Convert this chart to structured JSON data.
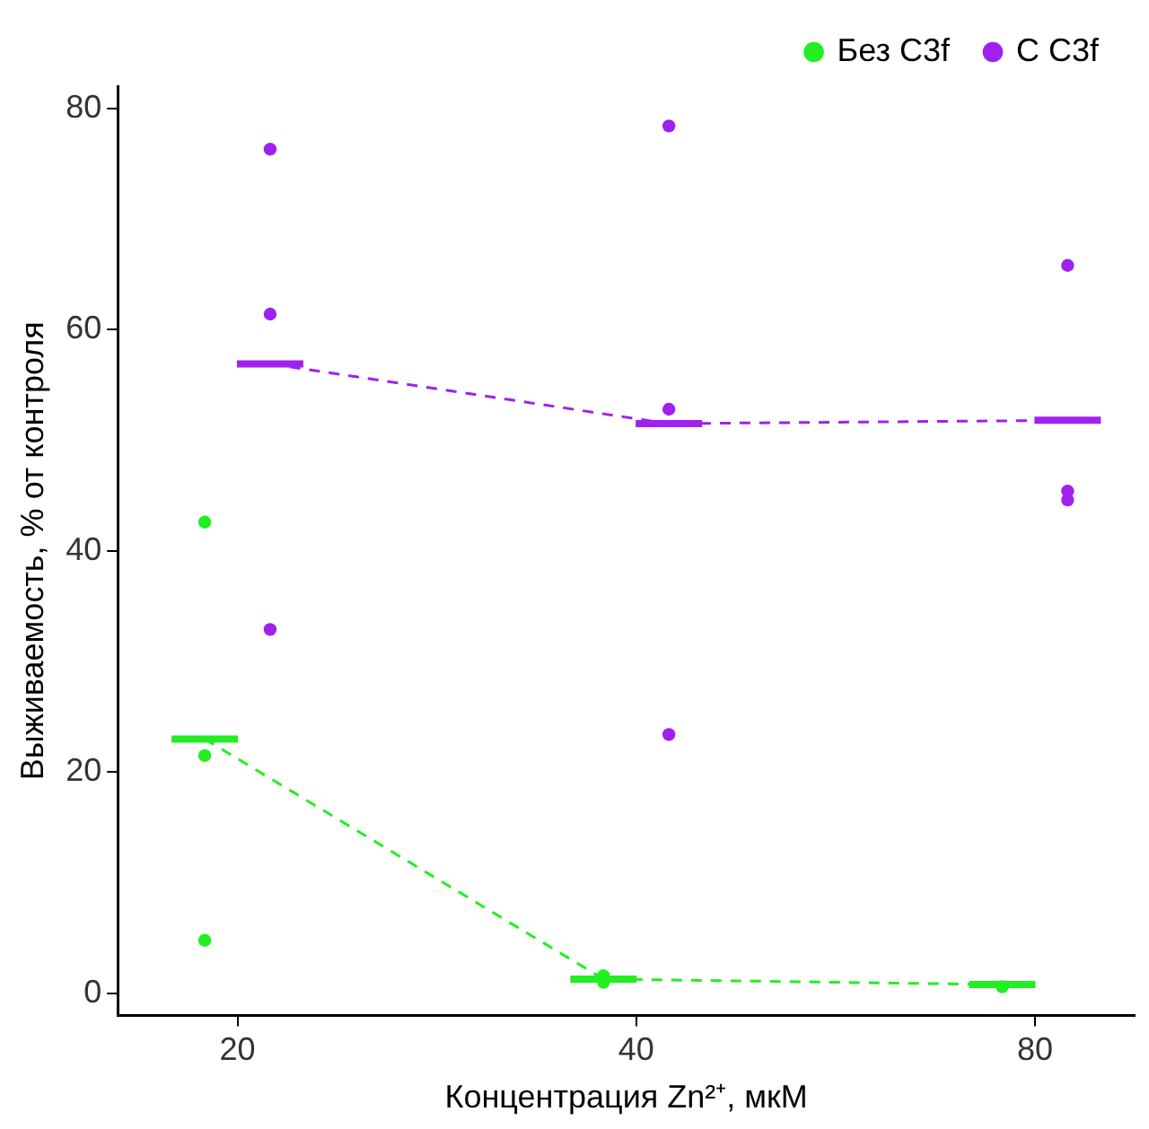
{
  "chart_data": {
    "type": "scatter",
    "xlabel": "Концентрация Zn²⁺, мкМ",
    "ylabel": "Выживаемость, % от контроля",
    "categories": [
      "20",
      "40",
      "80"
    ],
    "ylim": [
      -2,
      82
    ],
    "yticks": [
      0,
      20,
      40,
      60,
      80
    ],
    "grid": false,
    "legend": "top right",
    "marker": "circle",
    "series": [
      {
        "name": "Без C3f",
        "color": "#22ee22",
        "x": [
          "20",
          "20",
          "20",
          "40",
          "40",
          "80"
        ],
        "values": [
          42.6,
          21.5,
          4.8,
          1.6,
          1.0,
          0.6
        ]
      },
      {
        "name": "С C3f",
        "color": "#a020f0",
        "x": [
          "20",
          "20",
          "20",
          "40",
          "40",
          "40",
          "80",
          "80",
          "80"
        ],
        "values": [
          76.3,
          61.4,
          32.9,
          78.4,
          52.8,
          23.4,
          65.8,
          45.4,
          44.6
        ]
      },
      {
        "type": "box",
        "color": "#22ee22",
        "boxes": [
          {
            "low": 23.0,
            "q1": 23.0,
            "median": 23.0,
            "q3": 23.0,
            "high": 23.0
          },
          {
            "low": 1.3,
            "q1": 1.3,
            "median": 1.3,
            "q3": 1.3,
            "high": 1.3
          },
          {
            "low": 0.8,
            "q1": 0.8,
            "median": 0.8,
            "q3": 0.8,
            "high": 0.8
          }
        ]
      },
      {
        "type": "box",
        "color": "#a020f0",
        "boxes": [
          {
            "low": 56.9,
            "q1": 56.9,
            "median": 56.9,
            "q3": 56.9,
            "high": 56.9
          },
          {
            "low": 51.5,
            "q1": 51.5,
            "median": 51.5,
            "q3": 51.5,
            "high": 51.5
          },
          {
            "low": 51.8,
            "q1": 51.8,
            "median": 51.8,
            "q3": 51.8,
            "high": 51.8
          }
        ]
      },
      {
        "type": "line",
        "line_style": "dashed",
        "marker": "none",
        "color": "#22ee22",
        "values": [
          23.0,
          1.3,
          0.8
        ]
      },
      {
        "type": "line",
        "line_style": "dashed",
        "marker": "none",
        "color": "#a020f0",
        "values": [
          56.9,
          51.5,
          51.8
        ]
      }
    ]
  }
}
